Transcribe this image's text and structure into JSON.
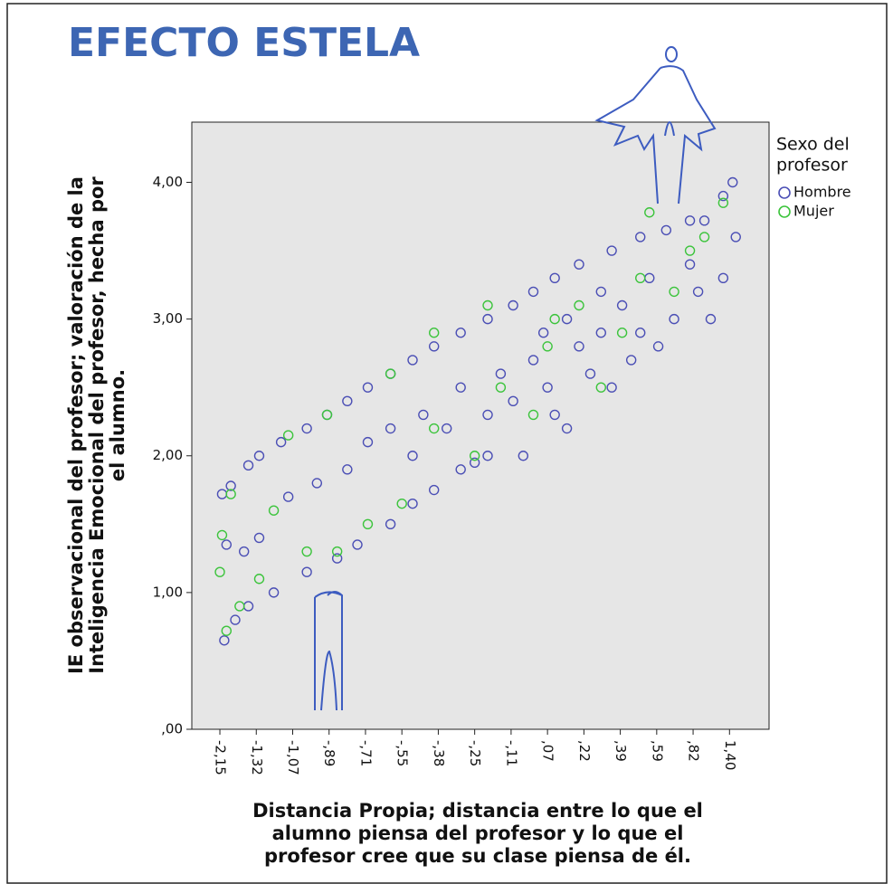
{
  "chart_data": {
    "type": "scatter",
    "title": "EFECTO ESTELA",
    "xlabel": [
      "Distancia Propia; distancia entre lo que el",
      "alumno piensa del profesor y lo que el",
      "profesor cree que su clase piensa de él."
    ],
    "ylabel": [
      "IE observacional del profesor; valoración de la",
      "Inteligencia Emocional del profesor, hecha por",
      "el alumno."
    ],
    "legend_title": [
      "Sexo del",
      "profesor"
    ],
    "xlim": [
      -2.79,
      2.03
    ],
    "ylim": [
      0,
      4.44
    ],
    "xticks": [
      {
        "value": -2.15,
        "label": "-2,15"
      },
      {
        "value": -1.32,
        "label": "-1,32"
      },
      {
        "value": -1.07,
        "label": "-1,07"
      },
      {
        "value": -0.89,
        "label": "-,89"
      },
      {
        "value": -0.71,
        "label": "-,71"
      },
      {
        "value": -0.55,
        "label": "-,55"
      },
      {
        "value": -0.38,
        "label": "-,38"
      },
      {
        "value": -0.25,
        "label": "-,25"
      },
      {
        "value": -0.11,
        "label": "-,11"
      },
      {
        "value": 0.07,
        "label": ",07"
      },
      {
        "value": 0.22,
        "label": ",22"
      },
      {
        "value": 0.39,
        "label": ",39"
      },
      {
        "value": 0.59,
        "label": ",59"
      },
      {
        "value": 0.82,
        "label": ",82"
      },
      {
        "value": 1.4,
        "label": "1,40"
      }
    ],
    "yticks": [
      {
        "value": 0,
        "label": ",00"
      },
      {
        "value": 1,
        "label": "1,00"
      },
      {
        "value": 2,
        "label": "2,00"
      },
      {
        "value": 3,
        "label": "3,00"
      },
      {
        "value": 4,
        "label": "4,00"
      }
    ],
    "series": [
      {
        "name": "Hombre",
        "color": "#4b4fb5",
        "x": [
          -2.1,
          -1.9,
          -1.5,
          -1.3,
          -1.15,
          -1.0,
          -0.9,
          -0.8,
          -0.7,
          -0.6,
          -0.5,
          -0.4,
          -0.3,
          -0.2,
          -0.1,
          0.0,
          0.1,
          0.2,
          0.35,
          0.5,
          0.65,
          0.8,
          1.0,
          1.3,
          1.45,
          -2.05,
          -1.8,
          -1.5,
          -1.2,
          -1.0,
          -0.85,
          -0.75,
          -0.6,
          -0.5,
          -0.4,
          -0.3,
          -0.2,
          -2.0,
          -1.6,
          -1.3,
          -1.1,
          -0.95,
          -0.8,
          -0.7,
          -0.6,
          -0.5,
          -0.45,
          -0.35,
          -0.3,
          -0.2,
          -0.15,
          -0.1,
          0.0,
          0.05,
          0.07,
          0.1,
          0.15,
          0.2,
          0.25,
          0.3,
          0.35,
          0.4,
          0.45,
          0.5,
          0.55,
          0.6,
          0.7,
          0.8,
          0.9,
          1.1,
          1.3,
          1.5,
          0.3,
          -0.05,
          -0.25,
          0.15
        ],
        "values": [
          1.72,
          1.78,
          1.93,
          2.0,
          2.1,
          2.2,
          2.3,
          2.4,
          2.5,
          2.6,
          2.7,
          2.8,
          2.9,
          3.0,
          3.1,
          3.2,
          3.3,
          3.4,
          3.5,
          3.6,
          3.65,
          3.72,
          3.72,
          3.9,
          4.0,
          0.65,
          0.8,
          0.9,
          1.0,
          1.15,
          1.25,
          1.35,
          1.5,
          1.65,
          1.75,
          1.9,
          2.0,
          1.35,
          1.3,
          1.4,
          1.7,
          1.8,
          1.9,
          2.1,
          2.2,
          2.0,
          2.3,
          2.2,
          2.5,
          2.3,
          2.6,
          2.4,
          2.7,
          2.9,
          2.5,
          2.3,
          3.0,
          2.8,
          2.6,
          2.9,
          2.5,
          3.1,
          2.7,
          2.9,
          3.3,
          2.8,
          3.0,
          3.4,
          3.2,
          3.0,
          3.3,
          3.6,
          3.2,
          2.0,
          1.95,
          2.2
        ]
      },
      {
        "name": "Mujer",
        "color": "#3cc43c",
        "x": [
          -2.15,
          -2.1,
          -2.0,
          -1.7,
          -1.3,
          -1.2,
          -1.0,
          -0.85,
          -0.7,
          -0.55,
          -0.4,
          -0.25,
          -0.15,
          0.0,
          0.07,
          0.1,
          0.2,
          0.3,
          0.4,
          0.5,
          0.55,
          0.7,
          0.8,
          1.0,
          1.3,
          -1.9,
          -1.1,
          -0.9,
          -0.6,
          -0.4,
          -0.2
        ],
        "values": [
          1.15,
          1.42,
          0.72,
          0.9,
          1.1,
          1.6,
          1.3,
          1.3,
          1.5,
          1.65,
          2.2,
          2.0,
          2.5,
          2.3,
          2.8,
          3.0,
          3.1,
          2.5,
          2.9,
          3.3,
          3.78,
          3.2,
          3.5,
          3.6,
          3.85,
          1.72,
          2.15,
          2.3,
          2.6,
          2.9,
          3.1
        ]
      }
    ]
  }
}
